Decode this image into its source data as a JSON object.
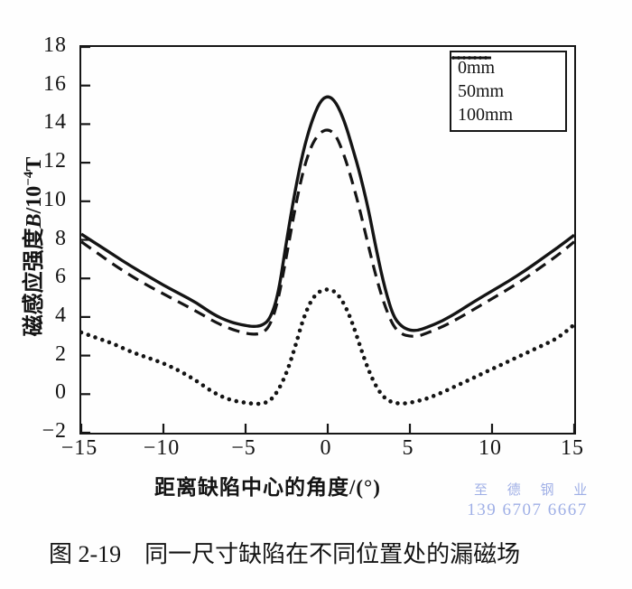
{
  "page": {
    "caption_prefix": "图 2-19",
    "caption_text": "同一尺寸缺陷在不同位置处的漏磁场",
    "watermark_line1": "至 德 钢 业",
    "watermark_line2": "139 6707 6667",
    "watermark_color": "#9fafe6",
    "line_color": "#141414",
    "background": "#fefefe"
  },
  "chart_data": {
    "type": "line",
    "title": "",
    "xlabel": "距离缺陷中心的角度/(°)",
    "ylabel": "磁感应强度B/10⁻⁴T",
    "ylabel_parts": {
      "prefix": "磁感应强度",
      "symbol": "B",
      "base": "/10",
      "exponent": "−4",
      "unit": "T"
    },
    "xlim": [
      -15,
      15
    ],
    "ylim": [
      -2,
      18
    ],
    "xticks": [
      -15,
      -10,
      -5,
      0,
      5,
      10,
      15
    ],
    "xtick_labels": [
      "−15",
      "−10",
      "−5",
      "0",
      "5",
      "10",
      "15"
    ],
    "yticks": [
      -2,
      0,
      2,
      4,
      6,
      8,
      10,
      12,
      14,
      16,
      18
    ],
    "ytick_labels": [
      "−2",
      "0",
      "2",
      "4",
      "6",
      "8",
      "10",
      "12",
      "14",
      "16",
      "18"
    ],
    "grid": false,
    "legend_position": "top-right",
    "series": [
      {
        "name": "0mm",
        "style": "solid",
        "color": "#141414",
        "x": [
          -15,
          -14,
          -13,
          -12,
          -11,
          -10,
          -9,
          -8,
          -7,
          -6,
          -5,
          -4.5,
          -4,
          -3.5,
          -3,
          -2.5,
          -2,
          -1.5,
          -1,
          -0.5,
          0,
          0.5,
          1,
          1.5,
          2,
          2.5,
          3,
          3.5,
          4,
          4.5,
          5,
          5.5,
          6,
          7,
          8,
          9,
          10,
          11,
          12,
          13,
          14,
          15
        ],
        "y": [
          8.3,
          7.75,
          7.2,
          6.65,
          6.15,
          5.65,
          5.2,
          4.75,
          4.15,
          3.75,
          3.55,
          3.5,
          3.55,
          3.9,
          5.2,
          8.0,
          10.5,
          12.6,
          14.1,
          15.15,
          15.5,
          15.15,
          14.2,
          12.8,
          11.3,
          9.5,
          7.3,
          5.4,
          4.0,
          3.5,
          3.3,
          3.3,
          3.45,
          3.8,
          4.3,
          4.85,
          5.35,
          5.85,
          6.4,
          7.0,
          7.6,
          8.25
        ]
      },
      {
        "name": "50mm",
        "style": "dashed",
        "color": "#141414",
        "x": [
          -15,
          -14,
          -13,
          -12,
          -11,
          -10,
          -9,
          -8,
          -7,
          -6,
          -5,
          -4.5,
          -4,
          -3.5,
          -3,
          -2.5,
          -2,
          -1.5,
          -1,
          -0.5,
          0,
          0.5,
          1,
          1.5,
          2,
          2.5,
          3,
          3.5,
          4,
          4.5,
          5,
          5.5,
          6,
          7,
          8,
          9,
          10,
          11,
          12,
          13,
          14,
          15
        ],
        "y": [
          7.9,
          7.3,
          6.7,
          6.15,
          5.65,
          5.2,
          4.75,
          4.3,
          3.8,
          3.4,
          3.15,
          3.1,
          3.15,
          3.55,
          4.9,
          7.2,
          9.6,
          11.6,
          12.9,
          13.55,
          13.75,
          13.45,
          12.4,
          11.0,
          9.4,
          7.6,
          5.9,
          4.5,
          3.5,
          3.1,
          3.0,
          3.0,
          3.15,
          3.5,
          3.95,
          4.45,
          4.95,
          5.45,
          6.0,
          6.6,
          7.2,
          7.9
        ]
      },
      {
        "name": "100mm",
        "style": "dotted",
        "color": "#141414",
        "x": [
          -15,
          -14,
          -13,
          -12,
          -11,
          -10,
          -9,
          -8,
          -7,
          -6,
          -5,
          -4.5,
          -4,
          -3.5,
          -3,
          -2.5,
          -2,
          -1.5,
          -1,
          -0.5,
          0,
          0.5,
          1,
          1.5,
          2,
          2.5,
          3,
          3.5,
          4,
          4.5,
          5,
          5.5,
          6,
          7,
          8,
          9,
          10,
          11,
          12,
          13,
          14,
          15
        ],
        "y": [
          3.2,
          2.9,
          2.6,
          2.2,
          1.9,
          1.6,
          1.2,
          0.7,
          0.1,
          -0.3,
          -0.45,
          -0.5,
          -0.5,
          -0.35,
          0.2,
          1.1,
          2.4,
          3.9,
          4.9,
          5.35,
          5.45,
          5.3,
          4.7,
          3.7,
          2.4,
          1.2,
          0.3,
          -0.25,
          -0.45,
          -0.5,
          -0.45,
          -0.35,
          -0.25,
          0.1,
          0.5,
          0.9,
          1.3,
          1.7,
          2.1,
          2.5,
          2.9,
          3.6
        ]
      }
    ]
  }
}
